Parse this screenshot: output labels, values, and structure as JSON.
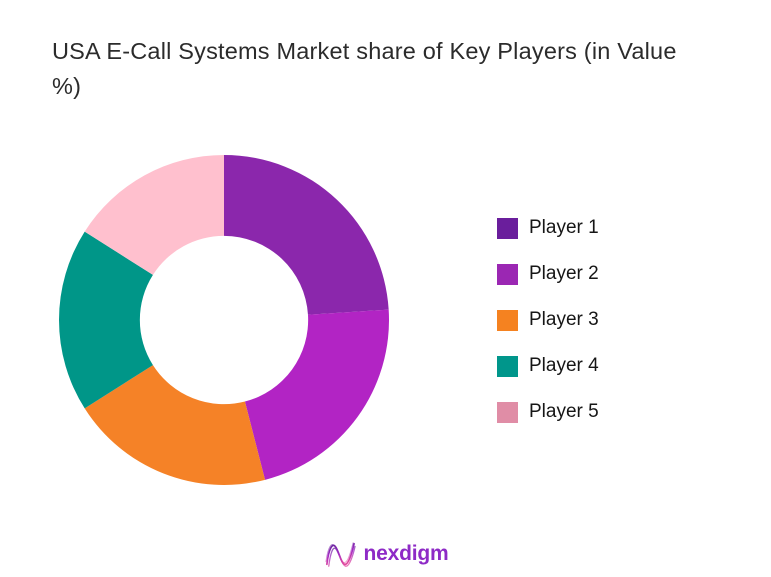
{
  "title": "USA E-Call Systems Market share of Key Players (in Value %)",
  "chart_data": {
    "type": "pie",
    "subtype": "donut",
    "title": "USA E-Call Systems Market share of Key Players (in Value %)",
    "unit": "% of value",
    "labels": [
      "Player 1",
      "Player 2",
      "Player 3",
      "Player 4",
      "Player 5"
    ],
    "values": [
      24,
      22,
      20,
      18,
      16
    ],
    "colors": [
      "#8b27ac",
      "#b224c4",
      "#f58227",
      "#009688",
      "#ffc0ce"
    ],
    "start_angle_deg": 0,
    "direction": "clockwise",
    "inner_radius_ratio": 0.51,
    "legend_position": "right",
    "data_labels_shown": false
  },
  "legend": {
    "items": [
      {
        "label": "Player 1",
        "color": "#6a1e9c"
      },
      {
        "label": "Player 2",
        "color": "#9b27b3"
      },
      {
        "label": "Player 3",
        "color": "#f58220"
      },
      {
        "label": "Player 4",
        "color": "#00968b"
      },
      {
        "label": "Player 5",
        "color": "#e08da6"
      }
    ]
  },
  "footer": {
    "brand": "nexdigm",
    "brand_color": "#8e2ac6",
    "logo_gradient_top": "#5b2496",
    "logo_gradient_bottom": "#e0489e"
  }
}
